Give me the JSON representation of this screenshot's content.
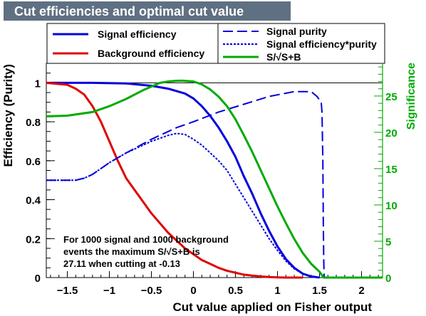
{
  "chart_data": {
    "type": "line",
    "title": "Cut efficiencies and optimal cut value",
    "xlabel": "Cut value applied on Fisher output",
    "ylabel": "Efficiency (Purity)",
    "y2label": "Significance",
    "xlim": [
      -1.75,
      2.25
    ],
    "ylim": [
      0,
      1.1
    ],
    "y2lim": [
      0,
      29.5
    ],
    "x_ticks": [
      -1.5,
      -1,
      -0.5,
      0,
      0.5,
      1,
      1.5,
      2
    ],
    "x_tick_labels": [
      "−1.5",
      "−1",
      "−0.5",
      "0",
      "0.5",
      "1",
      "1.5",
      "2"
    ],
    "y_ticks": [
      0,
      0.2,
      0.4,
      0.6,
      0.8,
      1
    ],
    "y_tick_labels": [
      "0",
      "0.2",
      "0.4",
      "0.6",
      "0.8",
      "1"
    ],
    "y2_ticks": [
      0,
      5,
      10,
      15,
      20,
      25
    ],
    "y2_tick_labels": [
      "0",
      "5",
      "10",
      "15",
      "20",
      "25"
    ],
    "reference_line_y": 1,
    "legend": {
      "left": [
        {
          "name": "Signal efficiency",
          "color": "#0000dd",
          "style": "solid"
        },
        {
          "name": "Background efficiency",
          "color": "#e00000",
          "style": "solid"
        }
      ],
      "right": [
        {
          "name": "Signal purity",
          "color": "#0000dd",
          "style": "dashed"
        },
        {
          "name": "Signal efficiency*purity",
          "color": "#0000dd",
          "style": "dotted"
        },
        {
          "name": "S/√S+B",
          "color": "#00aa00",
          "style": "solid"
        }
      ]
    },
    "annotation": [
      "For 1000 signal and 1000 background",
      "events the maximum S/√S+B is",
      "27.11 when cutting at -0.13"
    ],
    "series": [
      {
        "name": "Signal efficiency",
        "color": "#0000dd",
        "axis": "left",
        "style": "solid",
        "x": [
          -1.75,
          -1.2,
          -0.8,
          -0.5,
          -0.3,
          -0.1,
          0.0,
          0.1,
          0.2,
          0.3,
          0.4,
          0.5,
          0.6,
          0.7,
          0.8,
          0.9,
          1.0,
          1.1,
          1.2,
          1.3,
          1.4,
          1.5
        ],
        "y": [
          1.0,
          1.0,
          0.997,
          0.985,
          0.97,
          0.945,
          0.92,
          0.88,
          0.83,
          0.77,
          0.7,
          0.62,
          0.52,
          0.43,
          0.33,
          0.24,
          0.16,
          0.095,
          0.05,
          0.02,
          0.006,
          0.0
        ]
      },
      {
        "name": "Background efficiency",
        "color": "#e00000",
        "axis": "left",
        "style": "solid",
        "x": [
          -1.75,
          -1.5,
          -1.4,
          -1.3,
          -1.2,
          -1.1,
          -1.0,
          -0.9,
          -0.8,
          -0.7,
          -0.6,
          -0.5,
          -0.4,
          -0.3,
          -0.2,
          -0.1,
          0.0,
          0.1,
          0.2,
          0.3,
          0.4,
          0.5,
          0.6,
          0.7,
          0.8,
          0.9,
          1.0,
          1.1,
          1.3
        ],
        "y": [
          1.0,
          0.99,
          0.97,
          0.94,
          0.88,
          0.8,
          0.7,
          0.6,
          0.51,
          0.45,
          0.39,
          0.33,
          0.28,
          0.23,
          0.19,
          0.15,
          0.12,
          0.09,
          0.07,
          0.05,
          0.035,
          0.025,
          0.015,
          0.01,
          0.006,
          0.003,
          0.001,
          0.0,
          0.0
        ]
      },
      {
        "name": "Signal purity",
        "color": "#0000dd",
        "axis": "left",
        "style": "dashed",
        "x": [
          -1.75,
          -1.4,
          -1.3,
          -1.2,
          -1.1,
          -1.0,
          -0.8,
          -0.5,
          -0.2,
          0.0,
          0.3,
          0.6,
          0.9,
          1.2,
          1.4,
          1.47,
          1.52,
          1.53,
          1.54,
          1.545,
          1.55,
          1.555
        ],
        "y": [
          0.5,
          0.5,
          0.51,
          0.53,
          0.56,
          0.59,
          0.64,
          0.71,
          0.77,
          0.8,
          0.85,
          0.89,
          0.93,
          0.955,
          0.955,
          0.93,
          0.9,
          0.85,
          0.6,
          0.3,
          0.1,
          0.0
        ]
      },
      {
        "name": "Signal efficiency*purity",
        "color": "#0000dd",
        "axis": "left",
        "style": "dotted",
        "x": [
          -1.75,
          -1.4,
          -1.3,
          -1.2,
          -1.1,
          -1.0,
          -0.8,
          -0.5,
          -0.3,
          -0.2,
          -0.1,
          0.0,
          0.1,
          0.2,
          0.3,
          0.4,
          0.5,
          0.6,
          0.7,
          0.8,
          0.9,
          1.0,
          1.1,
          1.2,
          1.3,
          1.4,
          1.5
        ],
        "y": [
          0.5,
          0.5,
          0.51,
          0.53,
          0.56,
          0.59,
          0.64,
          0.7,
          0.73,
          0.74,
          0.735,
          0.71,
          0.68,
          0.64,
          0.6,
          0.55,
          0.48,
          0.41,
          0.34,
          0.27,
          0.2,
          0.14,
          0.085,
          0.045,
          0.02,
          0.006,
          0.0
        ]
      },
      {
        "name": "S/√S+B",
        "color": "#00aa00",
        "axis": "right",
        "style": "solid",
        "x": [
          -1.75,
          -1.5,
          -1.2,
          -1.0,
          -0.8,
          -0.6,
          -0.4,
          -0.3,
          -0.2,
          -0.13,
          0.0,
          0.1,
          0.2,
          0.3,
          0.4,
          0.5,
          0.6,
          0.7,
          0.8,
          0.9,
          1.0,
          1.1,
          1.2,
          1.3,
          1.4,
          1.5,
          1.55,
          2.25
        ],
        "y": [
          22.2,
          22.3,
          22.8,
          23.6,
          24.6,
          25.8,
          26.8,
          27.0,
          27.1,
          27.11,
          27.0,
          26.6,
          25.9,
          24.9,
          23.6,
          21.8,
          19.6,
          17.3,
          14.8,
          12.3,
          9.8,
          7.5,
          5.3,
          3.4,
          1.9,
          0.8,
          0.0,
          0.0
        ]
      }
    ]
  }
}
